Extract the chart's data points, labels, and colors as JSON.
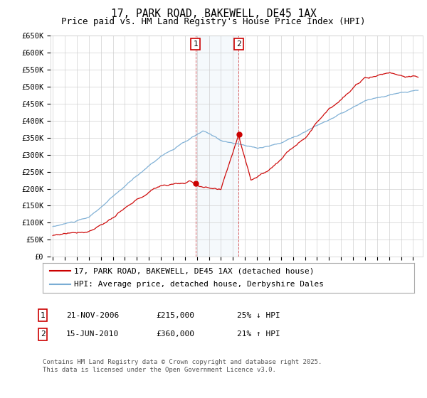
{
  "title": "17, PARK ROAD, BAKEWELL, DE45 1AX",
  "subtitle": "Price paid vs. HM Land Registry's House Price Index (HPI)",
  "ylim": [
    0,
    650000
  ],
  "xlim_start": 1994.8,
  "xlim_end": 2025.8,
  "marker1": {
    "label": "1",
    "date": "21-NOV-2006",
    "price": 215000,
    "year": 2006.89,
    "pct": "25%",
    "dir": "↓"
  },
  "marker2": {
    "label": "2",
    "date": "15-JUN-2010",
    "price": 360000,
    "year": 2010.46,
    "pct": "21%",
    "dir": "↑"
  },
  "line1_label": "17, PARK ROAD, BAKEWELL, DE45 1AX (detached house)",
  "line1_color": "#cc0000",
  "line2_label": "HPI: Average price, detached house, Derbyshire Dales",
  "line2_color": "#7aadd4",
  "footnote": "Contains HM Land Registry data © Crown copyright and database right 2025.\nThis data is licensed under the Open Government Licence v3.0.",
  "bg_color": "#ffffff",
  "grid_color": "#cccccc",
  "marker_box_color": "#cc0000",
  "shade_color": "#ccdff0",
  "title_fontsize": 10.5,
  "subtitle_fontsize": 9,
  "axis_fontsize": 7.5,
  "legend_fontsize": 8,
  "annot_fontsize": 8,
  "footnote_fontsize": 6.5
}
